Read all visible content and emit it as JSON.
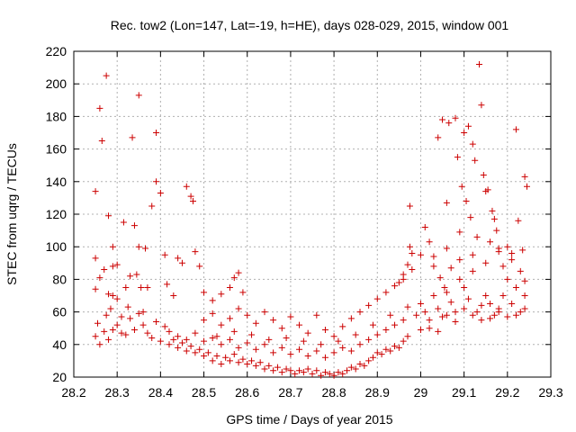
{
  "chart_data": {
    "type": "scatter",
    "title": "Rec. tow2 (Lon=147, Lat=-19, h=HE), days 028-029, 2015, window 001",
    "xlabel": "GPS time / Days of year 2015",
    "ylabel": "STEC from uqrg / TECUs",
    "xlim": [
      28.2,
      29.3
    ],
    "ylim": [
      20,
      220
    ],
    "xticks": [
      "28.2",
      "28.3",
      "28.4",
      "28.5",
      "28.6",
      "28.7",
      "28.8",
      "28.9",
      "29",
      "29.1",
      "29.2",
      "29.3"
    ],
    "yticks": [
      "20",
      "40",
      "60",
      "80",
      "100",
      "120",
      "140",
      "160",
      "180",
      "200",
      "220"
    ],
    "grid": true,
    "marker": "plus",
    "color": "#cc0000",
    "series": [
      {
        "points": [
          [
            28.25,
            134
          ],
          [
            28.26,
            185
          ],
          [
            28.265,
            165
          ],
          [
            28.275,
            205
          ],
          [
            28.28,
            119
          ],
          [
            28.29,
            100
          ],
          [
            28.29,
            88
          ],
          [
            28.3,
            89
          ],
          [
            28.25,
            93
          ],
          [
            28.25,
            74
          ],
          [
            28.255,
            53
          ],
          [
            28.26,
            81
          ],
          [
            28.27,
            86
          ],
          [
            28.275,
            58
          ],
          [
            28.28,
            71
          ],
          [
            28.285,
            62
          ],
          [
            28.29,
            70
          ],
          [
            28.3,
            68
          ],
          [
            28.31,
            57
          ],
          [
            28.315,
            115
          ],
          [
            28.32,
            75
          ],
          [
            28.325,
            63
          ],
          [
            28.33,
            82
          ],
          [
            28.335,
            167
          ],
          [
            28.34,
            113
          ],
          [
            28.345,
            83
          ],
          [
            28.35,
            193
          ],
          [
            28.35,
            100
          ],
          [
            28.355,
            75
          ],
          [
            28.36,
            60
          ],
          [
            28.365,
            99
          ],
          [
            28.37,
            75
          ],
          [
            28.38,
            125
          ],
          [
            28.39,
            170
          ],
          [
            28.39,
            140
          ],
          [
            28.4,
            133
          ],
          [
            28.41,
            95
          ],
          [
            28.415,
            77
          ],
          [
            28.43,
            70
          ],
          [
            28.44,
            93
          ],
          [
            28.45,
            90
          ],
          [
            28.46,
            137
          ],
          [
            28.47,
            131
          ],
          [
            28.475,
            128
          ],
          [
            28.48,
            97
          ],
          [
            28.49,
            88
          ],
          [
            28.5,
            72
          ],
          [
            28.52,
            67
          ],
          [
            28.54,
            71
          ],
          [
            28.56,
            75
          ],
          [
            28.57,
            81
          ],
          [
            28.58,
            84
          ],
          [
            28.59,
            72
          ],
          [
            28.25,
            45
          ],
          [
            28.26,
            40
          ],
          [
            28.27,
            48
          ],
          [
            28.28,
            43
          ],
          [
            28.29,
            49
          ],
          [
            28.3,
            52
          ],
          [
            28.31,
            47
          ],
          [
            28.32,
            46
          ],
          [
            28.33,
            56
          ],
          [
            28.34,
            49
          ],
          [
            28.35,
            59
          ],
          [
            28.36,
            52
          ],
          [
            28.37,
            47
          ],
          [
            28.38,
            44
          ],
          [
            28.39,
            54
          ],
          [
            28.4,
            42
          ],
          [
            28.41,
            51
          ],
          [
            28.42,
            40
          ],
          [
            28.43,
            43
          ],
          [
            28.44,
            38
          ],
          [
            28.45,
            41
          ],
          [
            28.46,
            36
          ],
          [
            28.47,
            39
          ],
          [
            28.48,
            35
          ],
          [
            28.49,
            37
          ],
          [
            28.5,
            33
          ],
          [
            28.51,
            35
          ],
          [
            28.52,
            30
          ],
          [
            28.53,
            33
          ],
          [
            28.54,
            28
          ],
          [
            28.55,
            32
          ],
          [
            28.56,
            30
          ],
          [
            28.57,
            34
          ],
          [
            28.58,
            29
          ],
          [
            28.59,
            31
          ],
          [
            28.6,
            28
          ],
          [
            28.61,
            30
          ],
          [
            28.62,
            27
          ],
          [
            28.63,
            29
          ],
          [
            28.64,
            25
          ],
          [
            28.65,
            27
          ],
          [
            28.66,
            24
          ],
          [
            28.67,
            26
          ],
          [
            28.68,
            23
          ],
          [
            28.69,
            25
          ],
          [
            28.7,
            24
          ],
          [
            28.71,
            22
          ],
          [
            28.72,
            24
          ],
          [
            28.73,
            23
          ],
          [
            28.74,
            25
          ],
          [
            28.75,
            22
          ],
          [
            28.76,
            24
          ],
          [
            28.77,
            21
          ],
          [
            28.78,
            23
          ],
          [
            28.79,
            22
          ],
          [
            28.8,
            21
          ],
          [
            28.81,
            23
          ],
          [
            28.82,
            22
          ],
          [
            28.83,
            24
          ],
          [
            28.84,
            26
          ],
          [
            28.85,
            25
          ],
          [
            28.86,
            28
          ],
          [
            28.87,
            27
          ],
          [
            28.88,
            30
          ],
          [
            28.89,
            32
          ],
          [
            28.9,
            35
          ],
          [
            28.91,
            34
          ],
          [
            28.92,
            37
          ],
          [
            28.93,
            36
          ],
          [
            28.94,
            39
          ],
          [
            28.95,
            38
          ],
          [
            28.96,
            42
          ],
          [
            28.97,
            45
          ],
          [
            28.42,
            48
          ],
          [
            28.44,
            45
          ],
          [
            28.46,
            43
          ],
          [
            28.48,
            47
          ],
          [
            28.5,
            42
          ],
          [
            28.52,
            44
          ],
          [
            28.54,
            40
          ],
          [
            28.56,
            43
          ],
          [
            28.58,
            38
          ],
          [
            28.6,
            41
          ],
          [
            28.62,
            37
          ],
          [
            28.64,
            40
          ],
          [
            28.66,
            35
          ],
          [
            28.68,
            38
          ],
          [
            28.7,
            34
          ],
          [
            28.72,
            37
          ],
          [
            28.74,
            33
          ],
          [
            28.76,
            36
          ],
          [
            28.78,
            32
          ],
          [
            28.8,
            35
          ],
          [
            28.82,
            38
          ],
          [
            28.84,
            36
          ],
          [
            28.86,
            40
          ],
          [
            28.88,
            43
          ],
          [
            28.9,
            46
          ],
          [
            28.92,
            49
          ],
          [
            28.94,
            52
          ],
          [
            28.96,
            55
          ],
          [
            28.5,
            55
          ],
          [
            28.52,
            59
          ],
          [
            28.54,
            52
          ],
          [
            28.56,
            56
          ],
          [
            28.58,
            62
          ],
          [
            28.6,
            58
          ],
          [
            28.62,
            53
          ],
          [
            28.64,
            60
          ],
          [
            28.66,
            55
          ],
          [
            28.68,
            50
          ],
          [
            28.7,
            57
          ],
          [
            28.72,
            52
          ],
          [
            28.74,
            47
          ],
          [
            28.76,
            58
          ],
          [
            28.78,
            49
          ],
          [
            28.8,
            45
          ],
          [
            28.82,
            51
          ],
          [
            28.84,
            56
          ],
          [
            28.86,
            60
          ],
          [
            28.88,
            64
          ],
          [
            28.9,
            68
          ],
          [
            28.92,
            72
          ],
          [
            28.94,
            76
          ],
          [
            28.96,
            80
          ],
          [
            28.98,
            86
          ],
          [
            28.53,
            45
          ],
          [
            28.57,
            48
          ],
          [
            28.61,
            46
          ],
          [
            28.65,
            43
          ],
          [
            28.69,
            44
          ],
          [
            28.73,
            42
          ],
          [
            28.77,
            40
          ],
          [
            28.81,
            42
          ],
          [
            28.85,
            46
          ],
          [
            28.89,
            52
          ],
          [
            28.93,
            58
          ],
          [
            28.97,
            63
          ],
          [
            28.95,
            78
          ],
          [
            28.96,
            83
          ],
          [
            28.97,
            89
          ],
          [
            28.975,
            100
          ],
          [
            28.975,
            125
          ],
          [
            28.98,
            96
          ],
          [
            28.99,
            58
          ],
          [
            29.0,
            49
          ],
          [
            29.01,
            112
          ],
          [
            29.02,
            103
          ],
          [
            29.03,
            94
          ],
          [
            29.04,
            167
          ],
          [
            29.045,
            81
          ],
          [
            29.05,
            178
          ],
          [
            29.055,
            75
          ],
          [
            29.06,
            127
          ],
          [
            29.065,
            176
          ],
          [
            29.07,
            87
          ],
          [
            29.08,
            179
          ],
          [
            29.085,
            155
          ],
          [
            29.09,
            109
          ],
          [
            29.095,
            137
          ],
          [
            29.1,
            170
          ],
          [
            29.105,
            128
          ],
          [
            29.11,
            174
          ],
          [
            29.115,
            118
          ],
          [
            29.12,
            163
          ],
          [
            29.125,
            153
          ],
          [
            29.13,
            106
          ],
          [
            29.135,
            212
          ],
          [
            29.14,
            187
          ],
          [
            29.145,
            144
          ],
          [
            29.15,
            134
          ],
          [
            29.155,
            135
          ],
          [
            29.16,
            103
          ],
          [
            29.165,
            122
          ],
          [
            29.17,
            117
          ],
          [
            29.175,
            110
          ],
          [
            29.18,
            97
          ],
          [
            29.19,
            88
          ],
          [
            29.2,
            100
          ],
          [
            29.21,
            96
          ],
          [
            29.22,
            172
          ],
          [
            29.225,
            116
          ],
          [
            29.23,
            85
          ],
          [
            29.235,
            98
          ],
          [
            29.24,
            143
          ],
          [
            29.245,
            137
          ],
          [
            29.0,
            65
          ],
          [
            29.01,
            60
          ],
          [
            29.02,
            55
          ],
          [
            29.03,
            70
          ],
          [
            29.04,
            62
          ],
          [
            29.05,
            57
          ],
          [
            29.06,
            72
          ],
          [
            29.07,
            66
          ],
          [
            29.08,
            60
          ],
          [
            29.09,
            80
          ],
          [
            29.1,
            75
          ],
          [
            29.11,
            68
          ],
          [
            29.12,
            85
          ],
          [
            29.13,
            60
          ],
          [
            29.14,
            55
          ],
          [
            29.15,
            70
          ],
          [
            29.16,
            65
          ],
          [
            29.17,
            58
          ],
          [
            29.18,
            62
          ],
          [
            29.19,
            70
          ],
          [
            29.2,
            80
          ],
          [
            29.21,
            65
          ],
          [
            29.22,
            75
          ],
          [
            29.23,
            60
          ],
          [
            29.24,
            70
          ],
          [
            29.02,
            50
          ],
          [
            29.04,
            48
          ],
          [
            29.06,
            58
          ],
          [
            29.08,
            54
          ],
          [
            29.1,
            62
          ],
          [
            29.12,
            58
          ],
          [
            29.14,
            64
          ],
          [
            29.16,
            56
          ],
          [
            29.18,
            60
          ],
          [
            29.2,
            57
          ],
          [
            29.22,
            58
          ],
          [
            29.24,
            62
          ],
          [
            29.0,
            95
          ],
          [
            29.03,
            88
          ],
          [
            29.06,
            99
          ],
          [
            29.09,
            92
          ],
          [
            29.12,
            95
          ],
          [
            29.15,
            90
          ],
          [
            29.18,
            99
          ],
          [
            29.21,
            92
          ],
          [
            29.24,
            79
          ]
        ]
      }
    ]
  }
}
